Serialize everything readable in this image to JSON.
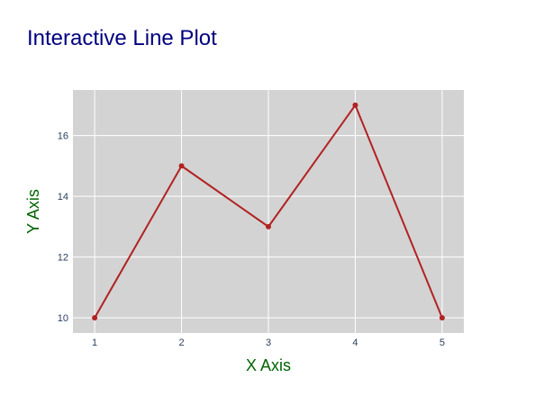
{
  "chart_data": {
    "type": "line",
    "title": "Interactive Line Plot",
    "xlabel": "X Axis",
    "ylabel": "Y Axis",
    "x": [
      1,
      2,
      3,
      4,
      5
    ],
    "series": [
      {
        "values": [
          10,
          15,
          13,
          17,
          10
        ]
      }
    ],
    "xlim": [
      0.75,
      5.25
    ],
    "ylim": [
      9.5,
      17.5
    ],
    "x_ticks": [
      1,
      2,
      3,
      4,
      5
    ],
    "y_ticks": [
      10,
      12,
      14,
      16
    ],
    "grid": true,
    "line_color": "#b22222",
    "marker_color": "#b22222",
    "title_color": "#000080",
    "axis_title_color": "#006400",
    "plot_background": "#d3d3d3"
  }
}
